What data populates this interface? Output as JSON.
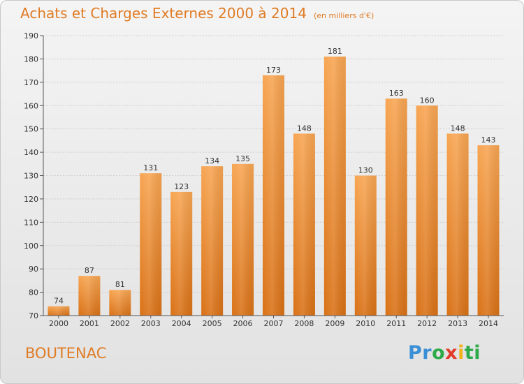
{
  "chart_data": {
    "type": "bar",
    "title": "Achats et Charges Externes 2000 à 2014",
    "subtitle": "(en milliers d'€)",
    "categories": [
      "2000",
      "2001",
      "2002",
      "2003",
      "2004",
      "2005",
      "2006",
      "2007",
      "2008",
      "2009",
      "2010",
      "2011",
      "2012",
      "2013",
      "2014"
    ],
    "values": [
      74,
      87,
      81,
      131,
      123,
      134,
      135,
      173,
      148,
      181,
      130,
      163,
      160,
      148,
      143
    ],
    "ylim": [
      70,
      190
    ],
    "yticks": [
      70,
      80,
      90,
      100,
      110,
      120,
      130,
      140,
      150,
      160,
      170,
      180,
      190
    ],
    "grid": true,
    "bar_color": "#f0923a"
  },
  "place": "BOUTENAC",
  "logo": {
    "parts": [
      "Pr",
      "o",
      "x",
      "i",
      "ti"
    ],
    "colors": [
      "#3a8fd6",
      "#2eaa4a",
      "#e23b2b",
      "#f0b21a",
      "#2eaa4a"
    ]
  }
}
